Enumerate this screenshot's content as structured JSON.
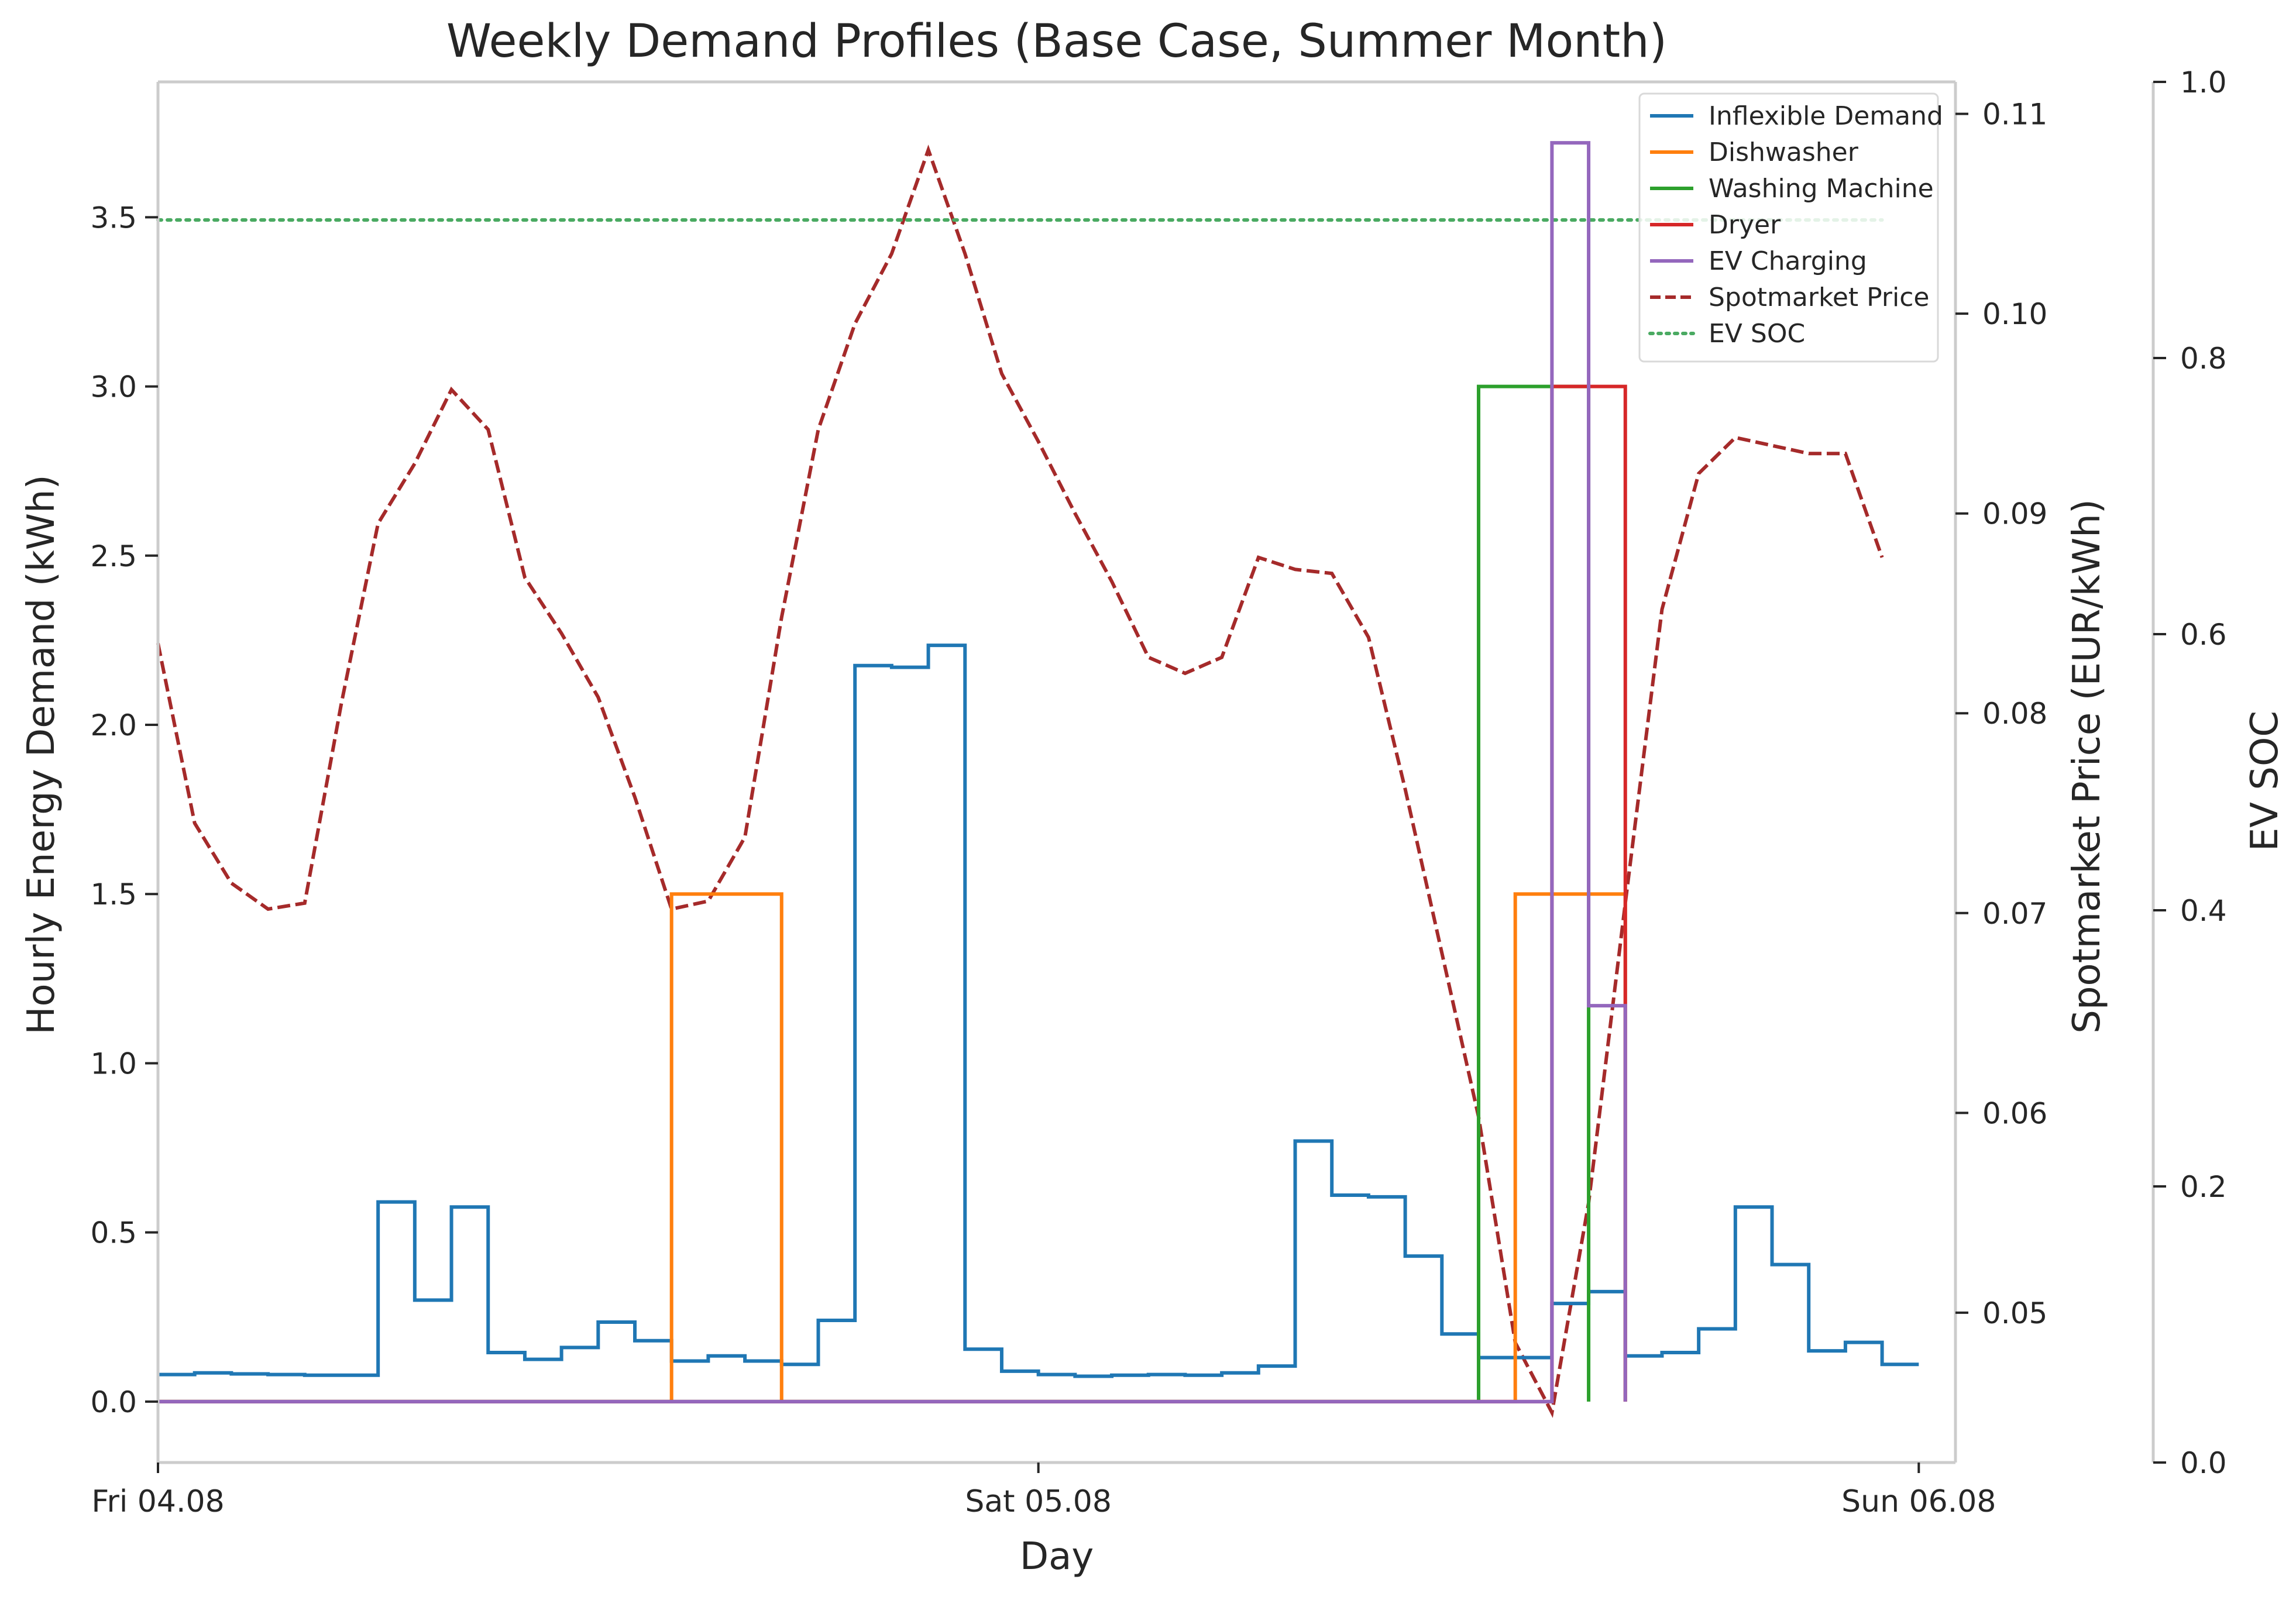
{
  "chart_data": {
    "type": "line",
    "title": "Weekly Demand Profiles (Base Case, Summer Month)",
    "xlabel": "Day",
    "ylabel": "Hourly Energy Demand (kWh)",
    "y2label": "Spotmarket Price (EUR/kWh)",
    "y3label": "EV SOC",
    "x_ticks": [
      {
        "hour": 0,
        "label": "Fri 04.08"
      },
      {
        "hour": 24,
        "label": "Sat 05.08"
      },
      {
        "hour": 48,
        "label": "Sun 06.08"
      }
    ],
    "xlim": [
      0,
      49
    ],
    "ylim": [
      -0.18,
      3.9
    ],
    "y_ticks": [
      "0.0",
      "0.5",
      "1.0",
      "1.5",
      "2.0",
      "2.5",
      "3.0",
      "3.5"
    ],
    "y2lim": [
      0.0425,
      0.1116
    ],
    "y2_ticks": [
      "0.05",
      "0.06",
      "0.07",
      "0.08",
      "0.09",
      "0.10",
      "0.11"
    ],
    "y3lim": [
      0.0,
      1.0
    ],
    "y3_ticks": [
      "0.0",
      "0.2",
      "0.4",
      "0.6",
      "0.8",
      "1.0"
    ],
    "grid": false,
    "legend_position": "top-right",
    "legend": [
      "Inflexible Demand",
      "Dishwasher",
      "Washing Machine",
      "Dryer",
      "EV Charging",
      "Spotmarket Price",
      "EV SOC"
    ],
    "series": [
      {
        "name": "Inflexible Demand",
        "axis": "left",
        "style": "step",
        "color": "#1f77b4",
        "hours": [
          0,
          1,
          2,
          3,
          4,
          5,
          6,
          7,
          8,
          9,
          10,
          11,
          12,
          13,
          14,
          15,
          16,
          17,
          18,
          19,
          20,
          21,
          22,
          23,
          24,
          25,
          26,
          27,
          28,
          29,
          30,
          31,
          32,
          33,
          34,
          35,
          36,
          37,
          38,
          39,
          40,
          41,
          42,
          43,
          44,
          45,
          46,
          47,
          48
        ],
        "values": [
          0.08,
          0.085,
          0.082,
          0.08,
          0.078,
          0.078,
          0.59,
          0.3,
          0.575,
          0.145,
          0.125,
          0.16,
          0.235,
          0.18,
          0.12,
          0.135,
          0.12,
          0.11,
          0.24,
          2.175,
          2.17,
          2.235,
          0.155,
          0.09,
          0.08,
          0.075,
          0.078,
          0.08,
          0.078,
          0.085,
          0.105,
          0.77,
          0.61,
          0.605,
          0.43,
          0.2,
          0.13,
          0.13,
          0.29,
          0.325,
          0.135,
          0.145,
          0.215,
          0.575,
          0.405,
          0.15,
          0.175,
          0.11,
          0.11
        ]
      },
      {
        "name": "Dishwasher",
        "axis": "left",
        "style": "step",
        "color": "#ff7f0e",
        "hours": [
          0,
          14,
          17,
          37,
          40
        ],
        "values": [
          0,
          1.5,
          0,
          1.5,
          0
        ]
      },
      {
        "name": "Washing Machine",
        "axis": "left",
        "style": "step",
        "color": "#2ca02c",
        "hours": [
          0,
          36,
          39
        ],
        "values": [
          0,
          3.0,
          0
        ]
      },
      {
        "name": "Dryer",
        "axis": "left",
        "style": "step",
        "color": "#d62728",
        "hours": [
          0,
          38,
          40
        ],
        "values": [
          0,
          3.0,
          0
        ]
      },
      {
        "name": "EV Charging",
        "axis": "left",
        "style": "step",
        "color": "#9467bd",
        "hours": [
          0,
          38,
          39,
          40
        ],
        "values": [
          0,
          3.72,
          1.17,
          0
        ]
      },
      {
        "name": "Spotmarket Price",
        "axis": "right",
        "style": "dashed",
        "color": "#a52a2a",
        "hours": [
          0,
          1,
          2,
          3,
          4,
          5,
          6,
          7,
          8,
          9,
          10,
          11,
          12,
          13,
          14,
          15,
          16,
          17,
          18,
          19,
          20,
          21,
          22,
          23,
          24,
          25,
          26,
          27,
          28,
          29,
          30,
          31,
          32,
          33,
          34,
          35,
          36,
          37,
          38,
          39,
          40,
          41,
          42,
          43,
          44,
          45,
          46,
          47
        ],
        "values": [
          0.0835,
          0.0745,
          0.0715,
          0.0702,
          0.0705,
          0.0805,
          0.0895,
          0.0925,
          0.0962,
          0.0942,
          0.0868,
          0.084,
          0.0808,
          0.0758,
          0.0702,
          0.0706,
          0.0738,
          0.0848,
          0.0942,
          0.0995,
          0.103,
          0.1082,
          0.103,
          0.097,
          0.0936,
          0.09,
          0.0866,
          0.0828,
          0.082,
          0.0828,
          0.0878,
          0.0872,
          0.087,
          0.0838,
          0.0762,
          0.068,
          0.0598,
          0.0485,
          0.045,
          0.0555,
          0.0705,
          0.0852,
          0.092,
          0.0938,
          0.0934,
          0.093,
          0.093,
          0.0878
        ]
      },
      {
        "name": "EV SOC",
        "axis": "soc",
        "style": "dotted",
        "color": "#4aaa62",
        "hours": [
          0,
          1,
          2,
          3,
          4,
          5,
          6,
          7,
          8,
          9,
          10,
          11,
          12,
          13,
          14,
          15,
          16,
          17,
          18,
          19,
          20,
          21,
          22,
          23,
          24,
          25,
          26,
          27,
          28,
          29,
          30,
          31,
          32,
          33,
          34,
          35,
          36,
          37,
          38,
          39,
          40,
          41,
          42,
          43,
          44,
          45,
          46,
          47
        ],
        "values": [
          0.9,
          0.9,
          0.9,
          0.9,
          0.9,
          0.9,
          0.9,
          0.9,
          0.9,
          0.9,
          0.9,
          0.9,
          0.9,
          0.9,
          0.9,
          0.9,
          0.9,
          0.9,
          0.9,
          0.9,
          0.9,
          0.9,
          0.9,
          0.9,
          0.9,
          0.9,
          0.9,
          0.9,
          0.9,
          0.9,
          0.9,
          0.9,
          0.9,
          0.9,
          0.9,
          0.9,
          0.9,
          0.9,
          0.9,
          0.9,
          0.9,
          0.9,
          0.9,
          0.9,
          0.9,
          0.9,
          0.9,
          0.9
        ]
      }
    ]
  }
}
